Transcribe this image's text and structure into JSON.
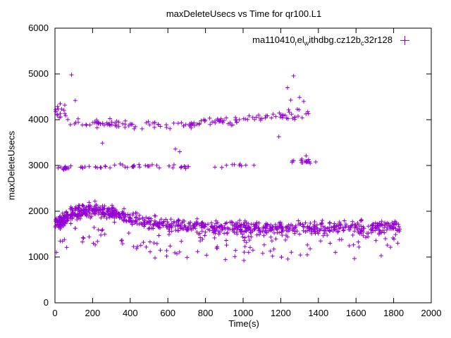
{
  "chart_data": {
    "type": "scatter",
    "title": "maxDeleteUsecs vs Time for qr100.L1",
    "xlabel": "Time(s)",
    "ylabel": "maxDeleteUsecs",
    "xlim": [
      0,
      2000
    ],
    "ylim": [
      0,
      6000
    ],
    "xticks": [
      0,
      200,
      400,
      600,
      800,
      1000,
      1200,
      1400,
      1600,
      1800,
      2000
    ],
    "yticks": [
      0,
      1000,
      2000,
      3000,
      4000,
      5000,
      6000
    ],
    "grid": false,
    "legend_position": "top-right-inside",
    "marker": "plus",
    "color": "#9400d3",
    "series": [
      {
        "name": "ma110410_rel_withdbg.cz12b_c32r128",
        "legend_segments": [
          [
            "t",
            "ma110410"
          ],
          [
            "sub",
            "r"
          ],
          [
            "t",
            "el"
          ],
          [
            "sub",
            "w"
          ],
          [
            "t",
            "ithdbg.cz12b"
          ],
          [
            "sub",
            "c"
          ],
          [
            "t",
            "32r128"
          ]
        ],
        "seed": 7,
        "bands": [
          {
            "name": "main",
            "count": 800,
            "t_range": [
              3,
              1835
            ],
            "anchors": [
              [
                0,
                1780
              ],
              [
                80,
                1950
              ],
              [
                160,
                2020
              ],
              [
                240,
                2040
              ],
              [
                320,
                1950
              ],
              [
                420,
                1820
              ],
              [
                520,
                1720
              ],
              [
                650,
                1680
              ],
              [
                900,
                1640
              ],
              [
                1300,
                1630
              ],
              [
                1835,
                1650
              ]
            ],
            "jitter": 150,
            "low_tail_prob": 0.09,
            "low_tail_max": 520
          },
          {
            "name": "main-early-dense",
            "count": 110,
            "t_range": [
              80,
              330
            ],
            "anchors": [
              [
                80,
                1980
              ],
              [
                200,
                2060
              ],
              [
                330,
                1950
              ]
            ],
            "jitter": 125,
            "low_tail_prob": 0.05,
            "low_tail_max": 450
          },
          {
            "name": "main-start",
            "count": 55,
            "t_range": [
              2,
              70
            ],
            "anchors": [
              [
                2,
                1700
              ],
              [
                70,
                1850
              ]
            ],
            "jitter": 115,
            "low_tail_prob": 0.04,
            "low_tail_max": 350
          },
          {
            "name": "mid-1",
            "count": 10,
            "t_range": [
              2,
              60
            ],
            "anchors": [
              [
                2,
                2950
              ],
              [
                60,
                2950
              ]
            ],
            "jitter": 35,
            "low_tail_prob": 0,
            "low_tail_max": 0
          },
          {
            "name": "mid-2",
            "count": 48,
            "t_range": [
              60,
              720
            ],
            "anchors": [
              [
                60,
                2950
              ],
              [
                400,
                2990
              ],
              [
                720,
                2970
              ]
            ],
            "jitter": 40,
            "low_tail_prob": 0,
            "low_tail_max": 0
          },
          {
            "name": "mid-3",
            "count": 12,
            "t_range": [
              850,
              1060
            ],
            "anchors": [
              [
                850,
                2990
              ],
              [
                1060,
                2990
              ]
            ],
            "jitter": 45,
            "low_tail_prob": 0,
            "low_tail_max": 0
          },
          {
            "name": "mid-4",
            "count": 14,
            "t_range": [
              1240,
              1400
            ],
            "anchors": [
              [
                1240,
                3080
              ],
              [
                1400,
                3100
              ]
            ],
            "jitter": 60,
            "low_tail_prob": 0,
            "low_tail_max": 0
          },
          {
            "name": "upper-start",
            "count": 12,
            "t_range": [
              2,
              60
            ],
            "anchors": [
              [
                2,
                4150
              ],
              [
                60,
                4100
              ]
            ],
            "jitter": 150,
            "low_tail_prob": 0,
            "low_tail_max": 0
          },
          {
            "name": "upper-1",
            "count": 48,
            "t_range": [
              60,
              430
            ],
            "anchors": [
              [
                60,
                3950
              ],
              [
                430,
                3880
              ]
            ],
            "jitter": 105,
            "low_tail_prob": 0,
            "low_tail_max": 0
          },
          {
            "name": "upper-2",
            "count": 30,
            "t_range": [
              430,
              760
            ],
            "anchors": [
              [
                430,
                3880
              ],
              [
                760,
                3900
              ]
            ],
            "jitter": 90,
            "low_tail_prob": 0,
            "low_tail_max": 0
          },
          {
            "name": "upper-3",
            "count": 45,
            "t_range": [
              760,
              1130
            ],
            "anchors": [
              [
                760,
                3950
              ],
              [
                1130,
                4060
              ]
            ],
            "jitter": 105,
            "low_tail_prob": 0,
            "low_tail_max": 0
          },
          {
            "name": "upper-4",
            "count": 25,
            "t_range": [
              1130,
              1360
            ],
            "anchors": [
              [
                1130,
                4090
              ],
              [
                1360,
                4140
              ]
            ],
            "jitter": 115,
            "low_tail_prob": 0,
            "low_tail_max": 0
          }
        ],
        "outliers": [
          [
            88,
            4980
          ],
          [
            1268,
            4955
          ],
          [
            1236,
            4700
          ],
          [
            1300,
            4490
          ],
          [
            1253,
            4430
          ],
          [
            1322,
            4400
          ],
          [
            28,
            4350
          ],
          [
            52,
            4320
          ],
          [
            14,
            4290
          ],
          [
            1288,
            4230
          ],
          [
            108,
            4420
          ],
          [
            1335,
            3210
          ],
          [
            1312,
            3140
          ],
          [
            1352,
            3080
          ],
          [
            640,
            3360
          ],
          [
            663,
            3300
          ],
          [
            252,
            3490
          ],
          [
            1190,
            3630
          ],
          [
            62,
            1210
          ],
          [
            146,
            1330
          ],
          [
            204,
            1300
          ],
          [
            214,
            1265
          ],
          [
            226,
            1340
          ],
          [
            418,
            1230
          ],
          [
            434,
            1185
          ],
          [
            456,
            1255
          ],
          [
            560,
            1150
          ],
          [
            612,
            1240
          ],
          [
            648,
            1070
          ],
          [
            662,
            1110
          ],
          [
            702,
            990
          ],
          [
            758,
            1120
          ],
          [
            806,
            1040
          ],
          [
            862,
            1190
          ],
          [
            906,
            945
          ],
          [
            912,
            1260
          ],
          [
            956,
            1010
          ],
          [
            1004,
            925
          ],
          [
            1010,
            1230
          ],
          [
            1052,
            1150
          ],
          [
            1104,
            1080
          ],
          [
            1156,
            1020
          ],
          [
            1204,
            995
          ],
          [
            1256,
            1105
          ],
          [
            1304,
            1045
          ],
          [
            1356,
            1180
          ],
          [
            1412,
            1350
          ],
          [
            1462,
            1300
          ],
          [
            1512,
            1380
          ],
          [
            1612,
            1330
          ],
          [
            1706,
            1360
          ],
          [
            1756,
            1400
          ],
          [
            1802,
            1390
          ]
        ]
      }
    ]
  }
}
